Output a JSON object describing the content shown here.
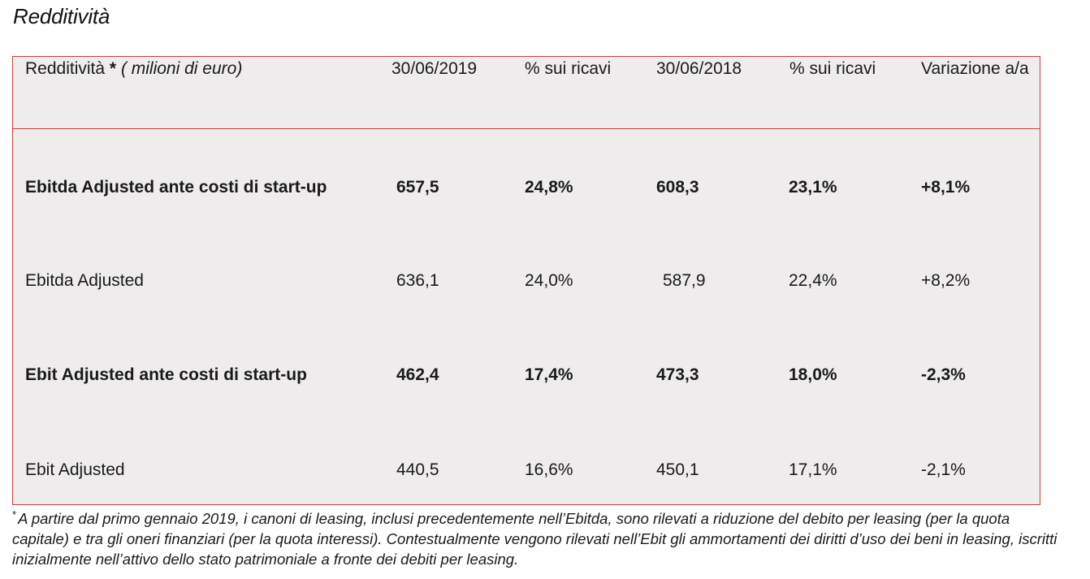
{
  "title": "Redditività",
  "table": {
    "header": {
      "label": "Redditività",
      "star": "*",
      "unit": "( milioni di euro)",
      "col1": "30/06/2019",
      "col2": "% sui ricavi",
      "col3": "30/06/2018",
      "col4": "% sui ricavi",
      "col5": "Variazione a/a"
    },
    "rows": [
      {
        "label": "Ebitda Adjusted ante costi di start-up",
        "v2019": "657,5",
        "pct2019": "24,8%",
        "v2018": "608,3",
        "pct2018": "23,1%",
        "change": "+8,1%",
        "bold": true
      },
      {
        "label": "Ebitda Adjusted",
        "v2019": "636,1",
        "pct2019": "24,0%",
        "v2018": "587,9",
        "pct2018": "22,4%",
        "change": "+8,2%",
        "bold": false
      },
      {
        "label": "Ebit Adjusted ante costi di start-up",
        "v2019": "462,4",
        "pct2019": "17,4%",
        "v2018": "473,3",
        "pct2018": "18,0%",
        "change": "-2,3%",
        "bold": true
      },
      {
        "label": "Ebit Adjusted",
        "v2019": "440,5",
        "pct2019": "16,6%",
        "v2018": "450,1",
        "pct2018": "17,1%",
        "change": "-2,1%",
        "bold": false
      }
    ]
  },
  "footnote": {
    "mark": "*",
    "text": "A partire dal primo gennaio 2019, i canoni di leasing, inclusi precedentemente nell’Ebitda, sono rilevati a riduzione del debito per leasing (per la quota capitale) e tra gli oneri finanziari (per la quota interessi). Contestualmente vengono rilevati nell’Ebit gli ammortamenti dei diritti d’uso dei beni in leasing, iscritti inizialmente nell’attivo dello stato patrimoniale a fronte dei debiti per leasing."
  },
  "colors": {
    "border": "#d23b3b",
    "table_background": "#eeecec"
  }
}
